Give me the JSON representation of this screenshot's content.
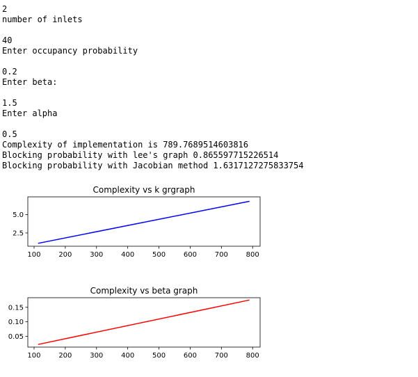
{
  "console": {
    "lines": [
      "2",
      "number of inlets",
      "",
      "40",
      "Enter occupancy probability",
      "",
      "0.2",
      "Enter beta:",
      "",
      "1.5",
      "Enter alpha",
      "",
      "0.5",
      "Complexity of implementation is 789.7689514603816",
      "Blocking probability with lee's graph 0.865597715226514",
      "Blocking probability with Jacobian method 1.6317127275833754"
    ]
  },
  "chart_data": [
    {
      "type": "line",
      "title": "Complexity vs k grgraph",
      "xlabel": "",
      "ylabel": "",
      "x_ticks": [
        100,
        200,
        300,
        400,
        500,
        600,
        700,
        800
      ],
      "y_ticks": [
        2.5,
        5.0
      ],
      "y_tick_labels": [
        "2.5",
        "5.0"
      ],
      "xlim": [
        80,
        824
      ],
      "ylim": [
        0.7,
        7.4
      ],
      "grid": false,
      "series": [
        {
          "color": "#0000ff",
          "x": [
            113,
            790
          ],
          "y": [
            1.1,
            6.8
          ]
        }
      ]
    },
    {
      "type": "line",
      "title": "Complexity vs beta graph",
      "xlabel": "",
      "ylabel": "",
      "x_ticks": [
        100,
        200,
        300,
        400,
        500,
        600,
        700,
        800
      ],
      "y_ticks": [
        0.05,
        0.1,
        0.15
      ],
      "y_tick_labels": [
        "0.05",
        "0.10",
        "0.15"
      ],
      "xlim": [
        80,
        824
      ],
      "ylim": [
        0.013,
        0.183
      ],
      "grid": false,
      "series": [
        {
          "color": "#ff0000",
          "x": [
            113,
            790
          ],
          "y": [
            0.022,
            0.175
          ]
        }
      ]
    }
  ]
}
